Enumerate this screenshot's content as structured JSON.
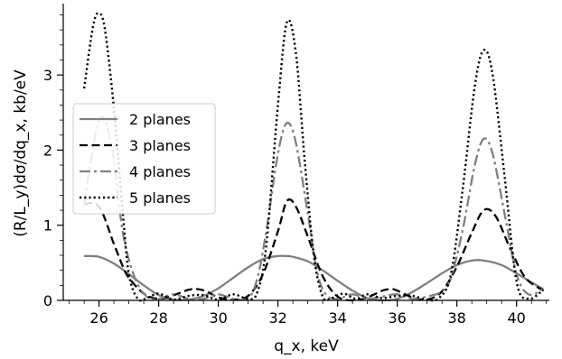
{
  "chart_data": {
    "type": "line",
    "title": "",
    "xlabel": "q_x, keV",
    "ylabel": "(R/L_y)dσ/dq_x, kb/eV",
    "xlim": [
      24.8,
      41.1
    ],
    "ylim": [
      0,
      3.95
    ],
    "x_ticks": [
      26,
      28,
      30,
      32,
      34,
      36,
      38,
      40
    ],
    "y_ticks": [
      0,
      1,
      2,
      3
    ],
    "x_minor_step": 0.5,
    "y_minor_step": 0.2,
    "grid": false,
    "legend_position": "center-left",
    "series": [
      {
        "name": "2 planes",
        "color": "#808080",
        "dash": "solid",
        "x": [
          25.5,
          26.0,
          26.5,
          27.0,
          27.5,
          28.0,
          28.5,
          29.0,
          29.5,
          30.0,
          30.5,
          31.0,
          31.5,
          32.0,
          32.3,
          32.5,
          33.0,
          33.5,
          34.0,
          34.5,
          35.0,
          35.5,
          36.0,
          36.5,
          37.0,
          37.5,
          38.0,
          38.5,
          38.9,
          39.5,
          40.0,
          40.5,
          40.9
        ],
        "y": [
          0.59,
          0.58,
          0.49,
          0.35,
          0.2,
          0.07,
          0.01,
          0.01,
          0.06,
          0.16,
          0.3,
          0.44,
          0.55,
          0.59,
          0.59,
          0.58,
          0.52,
          0.4,
          0.26,
          0.13,
          0.03,
          0.0,
          0.02,
          0.11,
          0.23,
          0.36,
          0.47,
          0.53,
          0.53,
          0.47,
          0.36,
          0.24,
          0.15
        ]
      },
      {
        "name": "3 planes",
        "color": "#000000",
        "dash": "dashed",
        "x": [
          25.5,
          26.0,
          26.5,
          26.8,
          27.0,
          27.5,
          28.0,
          28.5,
          29.0,
          29.3,
          29.6,
          30.0,
          30.5,
          31.0,
          31.5,
          32.0,
          32.3,
          32.6,
          33.0,
          33.5,
          34.0,
          34.5,
          35.0,
          35.5,
          35.8,
          36.0,
          36.5,
          37.0,
          37.5,
          38.0,
          38.5,
          38.9,
          39.3,
          39.8,
          40.3,
          40.9
        ],
        "y": [
          1.28,
          1.25,
          0.75,
          0.45,
          0.3,
          0.09,
          0.02,
          0.07,
          0.14,
          0.15,
          0.12,
          0.04,
          0.01,
          0.06,
          0.35,
          0.92,
          1.32,
          1.25,
          0.85,
          0.32,
          0.05,
          0.0,
          0.04,
          0.13,
          0.15,
          0.13,
          0.04,
          0.01,
          0.12,
          0.45,
          0.9,
          1.2,
          1.12,
          0.68,
          0.3,
          0.13
        ]
      },
      {
        "name": "4 planes",
        "color": "#808080",
        "dash": "dashdot",
        "x": [
          25.5,
          26.0,
          26.4,
          26.8,
          27.2,
          27.6,
          28.0,
          28.5,
          29.0,
          29.5,
          30.0,
          30.5,
          31.0,
          31.3,
          31.6,
          32.0,
          32.3,
          32.6,
          33.0,
          33.3,
          33.6,
          34.0,
          34.5,
          35.0,
          35.5,
          36.0,
          36.5,
          37.0,
          37.5,
          37.8,
          38.2,
          38.6,
          38.9,
          39.2,
          39.6,
          40.0,
          40.4,
          40.9
        ],
        "y": [
          1.28,
          2.4,
          2.1,
          0.9,
          0.3,
          0.05,
          0.02,
          0.08,
          0.02,
          0.02,
          0.08,
          0.02,
          0.03,
          0.28,
          0.9,
          1.95,
          2.36,
          2.1,
          1.15,
          0.4,
          0.08,
          0.02,
          0.08,
          0.02,
          0.05,
          0.08,
          0.02,
          0.05,
          0.12,
          0.3,
          0.95,
          1.8,
          2.15,
          1.95,
          1.15,
          0.35,
          0.08,
          0.15
        ]
      },
      {
        "name": "5 planes",
        "color": "#000000",
        "dash": "dotted",
        "x": [
          25.5,
          25.8,
          26.0,
          26.2,
          26.5,
          26.8,
          27.0,
          27.3,
          27.6,
          28.0,
          28.5,
          29.0,
          29.5,
          30.0,
          30.5,
          31.0,
          31.3,
          31.6,
          32.0,
          32.3,
          32.6,
          32.9,
          33.2,
          33.5,
          33.8,
          34.2,
          34.6,
          35.0,
          35.5,
          36.0,
          36.5,
          37.0,
          37.4,
          37.8,
          38.2,
          38.6,
          38.9,
          39.2,
          39.6,
          40.0,
          40.4,
          40.9
        ],
        "y": [
          2.82,
          3.65,
          3.82,
          3.6,
          2.55,
          1.15,
          0.35,
          0.02,
          0.03,
          0.09,
          0.01,
          0.06,
          0.07,
          0.01,
          0.08,
          0.02,
          0.1,
          0.7,
          2.6,
          3.7,
          3.3,
          1.85,
          0.6,
          0.05,
          0.03,
          0.09,
          0.02,
          0.08,
          0.03,
          0.06,
          0.06,
          0.01,
          0.03,
          0.35,
          1.5,
          2.85,
          3.33,
          3.0,
          1.65,
          0.25,
          0.02,
          0.14
        ]
      }
    ]
  }
}
